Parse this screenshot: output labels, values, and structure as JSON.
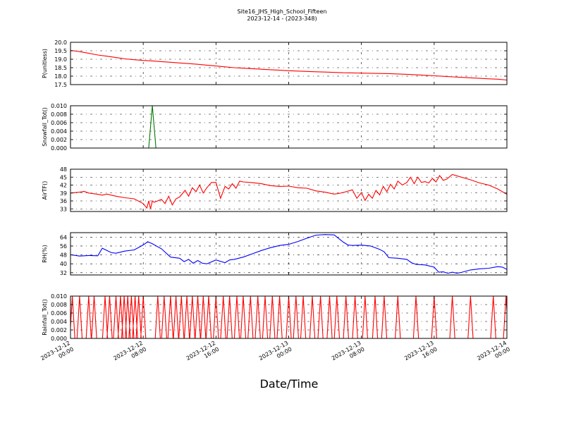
{
  "chart_data": {
    "type": "line",
    "title": "Site16_JHS_High_School_Fifteen",
    "subtitle": "2023-12-14 - (2023-348)",
    "xlabel": "Date/Time",
    "x_tick_labels": [
      {
        "line1": "2023-12-12",
        "line2": "00:00"
      },
      {
        "line1": "2023-12-12",
        "line2": "08:00"
      },
      {
        "line1": "2023-12-12",
        "line2": "16:00"
      },
      {
        "line1": "2023-12-13",
        "line2": "00:00"
      },
      {
        "line1": "2023-12-13",
        "line2": "08:00"
      },
      {
        "line1": "2023-12-13",
        "line2": "16:00"
      },
      {
        "line1": "2023-12-14",
        "line2": "00:00"
      }
    ],
    "x_range_hours": [
      0,
      48
    ],
    "grid": true,
    "panels": [
      {
        "ylabel": "P(unitless)",
        "color": "#ff0000",
        "ylim": [
          17.5,
          20.0
        ],
        "yticks": [
          17.5,
          18.0,
          18.5,
          19.0,
          19.5,
          20.0
        ],
        "ytick_labels": [
          "17.5",
          "18.0",
          "18.5",
          "19.0",
          "19.5",
          "20.0"
        ],
        "series": [
          {
            "x": [
              0,
              1,
              2,
              3,
              4,
              5,
              6,
              7,
              8,
              9,
              10,
              11,
              12,
              13,
              14,
              15,
              16,
              17,
              18,
              19,
              20,
              21,
              22,
              23,
              24,
              25,
              26,
              27,
              28,
              29,
              30,
              31,
              32,
              33,
              34,
              35,
              36,
              37,
              38,
              39,
              40,
              41,
              42,
              43,
              44,
              45,
              46,
              47,
              48
            ],
            "y": [
              19.52,
              19.45,
              19.35,
              19.25,
              19.18,
              19.1,
              19.02,
              18.97,
              18.93,
              18.9,
              18.86,
              18.82,
              18.78,
              18.74,
              18.7,
              18.65,
              18.6,
              18.55,
              18.5,
              18.47,
              18.44,
              18.41,
              18.38,
              18.35,
              18.32,
              18.3,
              18.28,
              18.26,
              18.24,
              18.22,
              18.2,
              18.19,
              18.18,
              18.17,
              18.16,
              18.15,
              18.13,
              18.11,
              18.08,
              18.05,
              18.02,
              17.99,
              17.96,
              17.93,
              17.9,
              17.87,
              17.84,
              17.82,
              17.77
            ]
          }
        ]
      },
      {
        "ylabel": "Snowfall_Tot()",
        "color": "#007700",
        "ylim": [
          0.0,
          0.01
        ],
        "yticks": [
          0.0,
          0.002,
          0.004,
          0.006,
          0.008,
          0.01
        ],
        "ytick_labels": [
          "0.000",
          "0.002",
          "0.004",
          "0.006",
          "0.008",
          "0.010"
        ],
        "series": [
          {
            "x": [
              0,
              8.6,
              9.0,
              9.4,
              48
            ],
            "y": [
              0,
              0,
              0.01,
              0,
              0
            ]
          }
        ]
      },
      {
        "ylabel": "AirTF()",
        "color": "#ff0000",
        "ylim": [
          32,
          48
        ],
        "yticks": [
          33,
          36,
          39,
          42,
          45,
          48
        ],
        "ytick_labels": [
          "33",
          "36",
          "39",
          "42",
          "45",
          "48"
        ],
        "series": [
          {
            "x": [
              0,
              1,
              1.5,
              2,
              3,
              3.5,
              4,
              5,
              6,
              7,
              8,
              8.4,
              8.6,
              8.8,
              9.0,
              9.2,
              10,
              10.4,
              10.8,
              11.2,
              11.6,
              12,
              12.6,
              13,
              13.4,
              13.8,
              14.2,
              14.6,
              15,
              15.5,
              16,
              16.5,
              17,
              17.4,
              17.8,
              18.2,
              18.6,
              19,
              20,
              21,
              22,
              23,
              24,
              25,
              26,
              27,
              28,
              29,
              29.5,
              30,
              31,
              31.5,
              32,
              32.4,
              32.8,
              33.2,
              33.6,
              34,
              34.4,
              34.8,
              35.2,
              35.6,
              36,
              36.5,
              37,
              37.4,
              37.8,
              38.2,
              38.6,
              39,
              39.4,
              39.8,
              40.2,
              40.6,
              41,
              41.4,
              42,
              43,
              44,
              45,
              46,
              47,
              48
            ],
            "y": [
              39,
              39.3,
              39.6,
              39,
              38.5,
              38.2,
              38.6,
              37.8,
              37.2,
              36.8,
              35,
              33.3,
              36.0,
              33.0,
              36.0,
              35.5,
              36.6,
              35.0,
              37.8,
              34.5,
              36.8,
              37.5,
              40,
              37.8,
              41,
              39.5,
              42,
              39,
              41,
              43,
              43,
              37,
              41.5,
              40.5,
              42.5,
              40.8,
              43.5,
              43.2,
              42.9,
              42.5,
              41.8,
              41.5,
              41.6,
              41,
              40.8,
              39.8,
              39.3,
              38.6,
              38.8,
              39.2,
              40.2,
              37.0,
              39.2,
              36.2,
              38.5,
              37.0,
              40,
              38.3,
              41.5,
              39.5,
              42.3,
              40.5,
              43.5,
              42,
              43,
              45,
              42.5,
              45,
              43,
              43.3,
              42.8,
              44.5,
              43.2,
              45.6,
              43.8,
              44.3,
              46,
              45,
              44,
              42.8,
              42,
              40.5,
              38.5
            ]
          }
        ]
      },
      {
        "ylabel": "RH(%)",
        "color": "#0000ff",
        "ylim": [
          30,
          68
        ],
        "yticks": [
          32,
          40,
          48,
          56,
          64
        ],
        "ytick_labels": [
          "32",
          "40",
          "48",
          "56",
          "64"
        ],
        "series": [
          {
            "x": [
              0,
              1,
              2,
              3,
              3.5,
              4,
              4.5,
              5,
              6,
              7,
              8,
              8.5,
              9,
              10,
              11,
              12,
              12.5,
              13,
              13.5,
              14,
              14.5,
              15,
              16,
              17,
              17.5,
              18,
              19,
              20,
              21,
              22,
              23,
              24,
              25,
              26,
              27,
              28,
              29,
              30,
              30.5,
              31,
              32,
              33,
              34,
              34.5,
              35,
              36,
              37,
              37.5,
              38,
              39,
              40,
              40.5,
              41,
              41.5,
              42,
              42.5,
              43,
              44,
              45,
              46,
              47,
              47.5,
              48
            ],
            "y": [
              48.2,
              47,
              47.5,
              47.2,
              54,
              52,
              50,
              49.5,
              51.5,
              52.5,
              57,
              59.8,
              58,
              53.5,
              46,
              45,
              42,
              44,
              40.5,
              43,
              40.5,
              40,
              43.5,
              41,
              43.5,
              44,
              46,
              49,
              52,
              54.5,
              56.5,
              57.5,
              60,
              63,
              65.8,
              66.3,
              66,
              59.5,
              57,
              56.5,
              56.8,
              56,
              53,
              50.8,
              45.5,
              45,
              44,
              41,
              39.5,
              39,
              37,
              32.5,
              32.8,
              31.5,
              32.5,
              31.5,
              32.3,
              34.5,
              35.5,
              36,
              37.5,
              37,
              35
            ]
          }
        ]
      },
      {
        "ylabel": "Rainfall_Tot()",
        "color": "#ff0000",
        "ylim": [
          0.0,
          0.01
        ],
        "yticks": [
          0.0,
          0.002,
          0.004,
          0.006,
          0.008,
          0.01
        ],
        "ytick_labels": [
          "0.000",
          "0.002",
          "0.004",
          "0.006",
          "0.008",
          "0.010"
        ],
        "spikes_at_x": [
          0.2,
          1.0,
          2.0,
          2.6,
          3.8,
          4.3,
          5.0,
          5.5,
          5.9,
          6.3,
          6.7,
          7.1,
          7.5,
          8.0,
          9.6,
          10.3,
          11.0,
          11.6,
          12.2,
          12.8,
          13.4,
          14.0,
          14.6,
          15.2,
          16.0,
          16.8,
          17.5,
          18.3,
          19.0,
          19.8,
          20.6,
          21.4,
          22.2,
          23.0,
          24.0,
          24.8,
          25.6,
          26.6,
          27.5,
          28.5,
          29.3,
          30.3,
          31.3,
          32.4,
          33.5,
          34.5,
          36.0,
          38.0,
          40.0,
          42.0,
          44.0,
          46.5,
          47.9
        ]
      }
    ]
  }
}
